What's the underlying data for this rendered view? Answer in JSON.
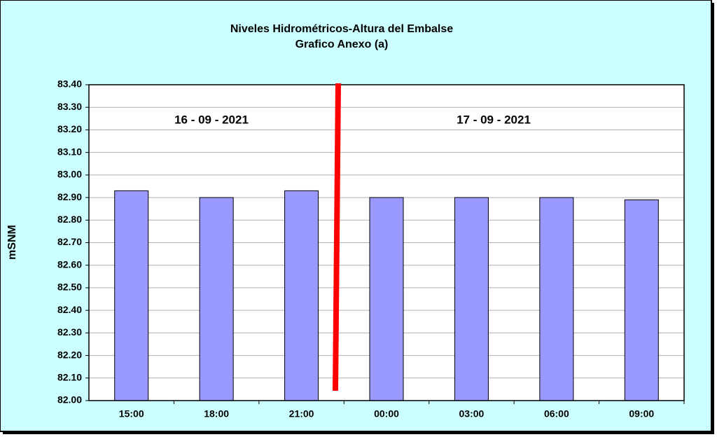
{
  "chart_data": {
    "type": "bar",
    "title": "Niveles Hidrométricos-Altura del Embalse",
    "subtitle": "Grafico Anexo (a)",
    "y_label": "mSNM",
    "annotations": [
      "16 - 09 - 2021",
      "17 - 09 - 2021"
    ],
    "categories": [
      "15:00",
      "18:00",
      "21:00",
      "00:00",
      "03:00",
      "06:00",
      "09:00"
    ],
    "values": [
      82.93,
      82.9,
      82.93,
      82.9,
      82.9,
      82.9,
      82.89
    ],
    "color": "#9999ff",
    "ylim": [
      82.0,
      83.4
    ],
    "yticks": [
      {
        "value": 82.0,
        "label": "82.00"
      },
      {
        "value": 82.1,
        "label": "82.10"
      },
      {
        "value": 82.2,
        "label": "82.20"
      },
      {
        "value": 82.3,
        "label": "82.30"
      },
      {
        "value": 82.4,
        "label": "82.40"
      },
      {
        "value": 82.5,
        "label": "82.50"
      },
      {
        "value": 82.6,
        "label": "82.60"
      },
      {
        "value": 82.7,
        "label": "82.70"
      },
      {
        "value": 82.8,
        "label": "82.80"
      },
      {
        "value": 82.9,
        "label": "82.90"
      },
      {
        "value": 83.0,
        "label": "83.00"
      },
      {
        "value": 83.1,
        "label": "83.10"
      },
      {
        "value": 83.2,
        "label": "83.20"
      },
      {
        "value": 83.3,
        "label": "83.30"
      },
      {
        "value": 83.4,
        "label": "83.40"
      }
    ],
    "grid": true
  }
}
